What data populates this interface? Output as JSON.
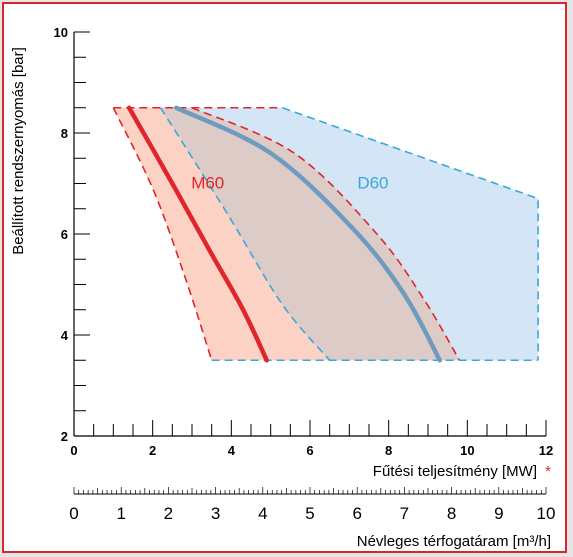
{
  "chart_data": {
    "type": "area",
    "title": "",
    "ylabel": "Beállított rendszernyomás [bar]",
    "xlabel": "Fűtési teljesítmény [MW]",
    "xlabel_marker": "*",
    "ylim": [
      2,
      10
    ],
    "xlim": [
      0,
      12
    ],
    "y_ticks": [
      "2",
      "4",
      "6",
      "8",
      "10"
    ],
    "x_ticks": [
      "0",
      "2",
      "4",
      "6",
      "8",
      "10",
      "12"
    ],
    "secondary_axis": {
      "label": "Névleges térfogatáram [m³/h]",
      "ticks": [
        "0",
        "1",
        "2",
        "3",
        "4",
        "5",
        "6",
        "7",
        "8",
        "9",
        "10"
      ],
      "range": [
        0,
        10
      ]
    },
    "series": [
      {
        "name": "M60",
        "color": "#e0262d",
        "fill": "#fbd2c4",
        "curve": [
          [
            1.4,
            8.5
          ],
          [
            2.5,
            7.0
          ],
          [
            3.5,
            5.6
          ],
          [
            4.3,
            4.5
          ],
          [
            4.9,
            3.5
          ]
        ],
        "envelope_left": [
          [
            1.0,
            8.5
          ],
          [
            2.0,
            6.9
          ],
          [
            2.8,
            5.2
          ],
          [
            3.5,
            3.5
          ]
        ],
        "envelope_right": [
          [
            2.2,
            8.5
          ],
          [
            3.9,
            6.4
          ],
          [
            5.3,
            4.6
          ],
          [
            6.5,
            3.5
          ]
        ]
      },
      {
        "name": "D60",
        "color": "#6f9bc0",
        "fill": "#d4e5f6",
        "curve": [
          [
            2.6,
            8.5
          ],
          [
            5.0,
            7.6
          ],
          [
            7.1,
            6.1
          ],
          [
            8.4,
            4.8
          ],
          [
            9.3,
            3.5
          ]
        ],
        "envelope_left": [
          [
            2.2,
            8.5
          ],
          [
            3.9,
            6.4
          ],
          [
            5.3,
            4.6
          ],
          [
            6.5,
            3.5
          ]
        ],
        "envelope_right": [
          [
            3.0,
            8.5
          ],
          [
            5.6,
            7.6
          ],
          [
            7.7,
            6.0
          ],
          [
            8.9,
            4.7
          ],
          [
            9.8,
            3.5
          ]
        ],
        "outer_boundary": [
          [
            5.3,
            8.5
          ],
          [
            11.8,
            6.7
          ],
          [
            11.8,
            3.5
          ]
        ]
      }
    ],
    "series_fills": [
      "#fbd2c4",
      "#d4e5f6",
      "#dccbc7"
    ],
    "overlap_fill": "#dccbc7",
    "grid": false
  }
}
